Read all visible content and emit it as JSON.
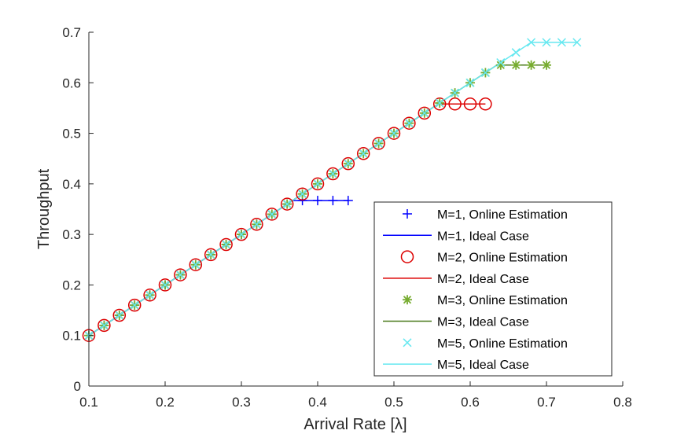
{
  "chart_data": {
    "type": "line",
    "title": "",
    "xlabel": "Arrival Rate [λ]",
    "ylabel": "Throughput",
    "xlim": [
      0.1,
      0.8
    ],
    "ylim": [
      0,
      0.7
    ],
    "xticks": [
      "0.1",
      "0.2",
      "0.3",
      "0.4",
      "0.5",
      "0.6",
      "0.7",
      "0.8"
    ],
    "yticks": [
      "0",
      "0.1",
      "0.2",
      "0.3",
      "0.4",
      "0.5",
      "0.6",
      "0.7"
    ],
    "grid": false,
    "legend_position": "bottom-right",
    "series": [
      {
        "name": "M=1, Online Estimation",
        "kind": "markers",
        "marker": "plus",
        "color": "#0000ff",
        "x": [
          0.1,
          0.12,
          0.14,
          0.16,
          0.18,
          0.2,
          0.22,
          0.24,
          0.26,
          0.28,
          0.3,
          0.32,
          0.34,
          0.36,
          0.38,
          0.4,
          0.42,
          0.44
        ],
        "y": [
          0.1,
          0.12,
          0.14,
          0.16,
          0.18,
          0.2,
          0.22,
          0.24,
          0.26,
          0.28,
          0.3,
          0.32,
          0.34,
          0.36,
          0.367,
          0.367,
          0.367,
          0.367
        ]
      },
      {
        "name": "M=1, Ideal Case",
        "kind": "line",
        "color": "#0000ff",
        "x": [
          0.1,
          0.367,
          0.44
        ],
        "y": [
          0.1,
          0.367,
          0.367
        ]
      },
      {
        "name": "M=2, Online Estimation",
        "kind": "markers",
        "marker": "circle",
        "color": "#dd0000",
        "x": [
          0.1,
          0.12,
          0.14,
          0.16,
          0.18,
          0.2,
          0.22,
          0.24,
          0.26,
          0.28,
          0.3,
          0.32,
          0.34,
          0.36,
          0.38,
          0.4,
          0.42,
          0.44,
          0.46,
          0.48,
          0.5,
          0.52,
          0.54,
          0.56,
          0.58,
          0.6,
          0.62
        ],
        "y": [
          0.1,
          0.12,
          0.14,
          0.16,
          0.18,
          0.2,
          0.22,
          0.24,
          0.26,
          0.28,
          0.3,
          0.32,
          0.34,
          0.36,
          0.38,
          0.4,
          0.42,
          0.44,
          0.46,
          0.48,
          0.5,
          0.52,
          0.54,
          0.558,
          0.558,
          0.558,
          0.558
        ]
      },
      {
        "name": "M=2, Ideal Case",
        "kind": "line",
        "color": "#dd0000",
        "x": [
          0.1,
          0.558,
          0.62
        ],
        "y": [
          0.1,
          0.558,
          0.558
        ]
      },
      {
        "name": "M=3, Online Estimation",
        "kind": "markers",
        "marker": "asterisk",
        "color": "#77ac30",
        "x": [
          0.1,
          0.12,
          0.14,
          0.16,
          0.18,
          0.2,
          0.22,
          0.24,
          0.26,
          0.28,
          0.3,
          0.32,
          0.34,
          0.36,
          0.38,
          0.4,
          0.42,
          0.44,
          0.46,
          0.48,
          0.5,
          0.52,
          0.54,
          0.56,
          0.58,
          0.6,
          0.62,
          0.64,
          0.66,
          0.68,
          0.7
        ],
        "y": [
          0.1,
          0.12,
          0.14,
          0.16,
          0.18,
          0.2,
          0.22,
          0.24,
          0.26,
          0.28,
          0.3,
          0.32,
          0.34,
          0.36,
          0.38,
          0.4,
          0.42,
          0.44,
          0.46,
          0.48,
          0.5,
          0.52,
          0.54,
          0.56,
          0.58,
          0.6,
          0.62,
          0.635,
          0.635,
          0.635,
          0.635
        ]
      },
      {
        "name": "M=3, Ideal Case",
        "kind": "line",
        "color": "#4a7a1c",
        "x": [
          0.1,
          0.635,
          0.7
        ],
        "y": [
          0.1,
          0.635,
          0.635
        ]
      },
      {
        "name": "M=5, Online Estimation",
        "kind": "markers",
        "marker": "cross",
        "color": "#66e8f0",
        "x": [
          0.1,
          0.12,
          0.14,
          0.16,
          0.18,
          0.2,
          0.22,
          0.24,
          0.26,
          0.28,
          0.3,
          0.32,
          0.34,
          0.36,
          0.38,
          0.4,
          0.42,
          0.44,
          0.46,
          0.48,
          0.5,
          0.52,
          0.54,
          0.56,
          0.58,
          0.6,
          0.62,
          0.64,
          0.66,
          0.68,
          0.7,
          0.72,
          0.74
        ],
        "y": [
          0.1,
          0.12,
          0.14,
          0.16,
          0.18,
          0.2,
          0.22,
          0.24,
          0.26,
          0.28,
          0.3,
          0.32,
          0.34,
          0.36,
          0.38,
          0.4,
          0.42,
          0.44,
          0.46,
          0.48,
          0.5,
          0.52,
          0.54,
          0.56,
          0.58,
          0.6,
          0.62,
          0.64,
          0.66,
          0.68,
          0.68,
          0.68,
          0.68
        ]
      },
      {
        "name": "M=5, Ideal Case",
        "kind": "line",
        "color": "#66e8f0",
        "x": [
          0.1,
          0.68,
          0.74
        ],
        "y": [
          0.1,
          0.68,
          0.68
        ]
      }
    ]
  }
}
